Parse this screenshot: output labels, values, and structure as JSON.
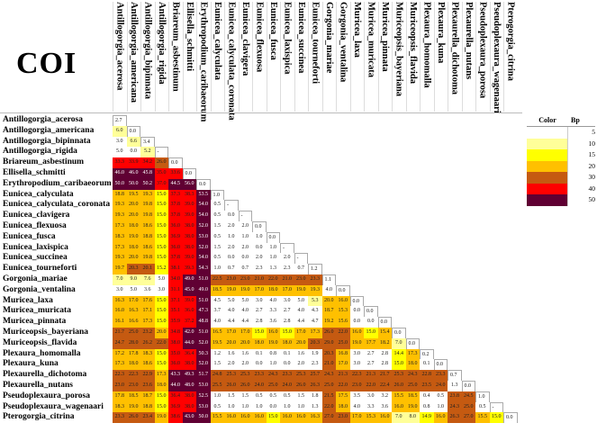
{
  "chart_data": {
    "type": "heatmap",
    "title": "COI",
    "species": [
      "Antillogorgia_acerosa",
      "Antillogorgia_americana",
      "Antillogorgia_bipinnata",
      "Antillogorgia_rigida",
      "Briareum_asbestinum",
      "Ellisella_schmitti",
      "Erythropodium_caribaeorum",
      "Eunicea_calyculata",
      "Eunicea_calyculata_coronata",
      "Eunicea_clavigera",
      "Eunicea_flexuosa",
      "Eunicea_fusca",
      "Eunicea_laxispica",
      "Eunicea_succinea",
      "Eunicea_tourneforti",
      "Gorgonia_mariae",
      "Gorgonia_ventalina",
      "Muricea_laxa",
      "Muricea_muricata",
      "Muricea_pinnata",
      "Muriceopsis_bayeriana",
      "Muriceopsis_flavida",
      "Plexaura_homomalla",
      "Plexaura_kuna",
      "Plexaurella_dichotoma",
      "Plexaurella_nutans",
      "Pseudoplexaura_porosa",
      "Pseudoplexaura_wagenaari",
      "Pterogorgia_citrina"
    ],
    "matrix": [
      [
        "2.7"
      ],
      [
        "6.0",
        "0.0"
      ],
      [
        "3.0",
        "6.6",
        "3.4"
      ],
      [
        "5.0",
        "0.0",
        "5.2",
        "-"
      ],
      [
        "33.3",
        "33.9",
        "34.2",
        "26.0",
        "0.0"
      ],
      [
        "46.0",
        "46.0",
        "45.8",
        "35.0",
        "33.6",
        "0.0"
      ],
      [
        "50.0",
        "50.0",
        "50.2",
        "37.0",
        "44.5",
        "56.0",
        "0.0"
      ],
      [
        "18.8",
        "19.5",
        "19.3",
        "15.0",
        "37.3",
        "38.3",
        "53.5",
        "1.0"
      ],
      [
        "19.3",
        "20.0",
        "19.8",
        "15.0",
        "37.8",
        "39.0",
        "54.0",
        "0.5",
        "-"
      ],
      [
        "19.3",
        "20.0",
        "19.8",
        "15.0",
        "37.8",
        "39.0",
        "54.0",
        "0.5",
        "0.0",
        "-"
      ],
      [
        "17.3",
        "18.0",
        "18.6",
        "15.0",
        "36.0",
        "38.0",
        "52.0",
        "1.5",
        "2.0",
        "2.0",
        "0.0"
      ],
      [
        "18.3",
        "19.0",
        "18.8",
        "15.0",
        "36.9",
        "38.0",
        "53.0",
        "0.5",
        "1.0",
        "1.0",
        "1.0",
        "0.0"
      ],
      [
        "17.3",
        "18.0",
        "18.6",
        "15.0",
        "36.0",
        "38.0",
        "52.0",
        "1.5",
        "2.0",
        "2.0",
        "0.0",
        "1.0",
        "-"
      ],
      [
        "19.3",
        "20.0",
        "19.8",
        "15.0",
        "37.8",
        "39.0",
        "54.0",
        "0.5",
        "0.0",
        "0.0",
        "2.0",
        "1.0",
        "2.0",
        "-"
      ],
      [
        "19.7",
        "20.3",
        "20.1",
        "15.2",
        "38.1",
        "39.3",
        "54.3",
        "1.0",
        "0.7",
        "0.7",
        "2.3",
        "1.3",
        "2.3",
        "0.7",
        "1.2"
      ],
      [
        "7.0",
        "9.0",
        "7.6",
        "5.0",
        "34.0",
        "49.0",
        "51.0",
        "22.5",
        "23.0",
        "23.0",
        "21.0",
        "22.0",
        "21.0",
        "23.0",
        "23.3",
        "1.1"
      ],
      [
        "3.0",
        "5.0",
        "3.6",
        "3.0",
        "31.1",
        "45.0",
        "49.0",
        "18.5",
        "19.0",
        "19.0",
        "17.0",
        "18.0",
        "17.0",
        "19.0",
        "19.3",
        "4.0",
        "0.0"
      ],
      [
        "16.3",
        "17.0",
        "17.6",
        "15.0",
        "37.1",
        "39.0",
        "51.0",
        "4.5",
        "5.0",
        "5.0",
        "3.0",
        "4.0",
        "3.0",
        "5.0",
        "5.3",
        "20.0",
        "16.0",
        "0.0"
      ],
      [
        "16.0",
        "16.3",
        "17.1",
        "15.0",
        "35.1",
        "36.0",
        "47.3",
        "3.7",
        "4.0",
        "4.0",
        "2.7",
        "3.3",
        "2.7",
        "4.0",
        "4.3",
        "18.7",
        "15.3",
        "0.0",
        "0.0"
      ],
      [
        "16.1",
        "16.6",
        "17.3",
        "15.0",
        "35.9",
        "37.2",
        "48.8",
        "4.0",
        "4.4",
        "4.4",
        "2.8",
        "3.6",
        "2.8",
        "4.4",
        "4.7",
        "19.2",
        "15.6",
        "0.0",
        "0.0",
        "0.0"
      ],
      [
        "21.7",
        "25.0",
        "23.2",
        "20.0",
        "34.8",
        "42.0",
        "51.0",
        "16.5",
        "17.0",
        "17.0",
        "15.0",
        "16.0",
        "15.0",
        "17.0",
        "17.3",
        "26.0",
        "22.0",
        "16.0",
        "15.0",
        "15.4",
        "0.0"
      ],
      [
        "24.7",
        "28.0",
        "26.2",
        "22.0",
        "38.0",
        "44.0",
        "52.0",
        "19.5",
        "20.0",
        "20.0",
        "18.0",
        "19.0",
        "18.0",
        "20.0",
        "20.3",
        "29.0",
        "25.0",
        "19.0",
        "17.7",
        "18.2",
        "7.0",
        "0.0"
      ],
      [
        "17.2",
        "17.8",
        "18.3",
        "15.0",
        "35.0",
        "36.4",
        "50.3",
        "1.2",
        "1.6",
        "1.6",
        "0.1",
        "0.8",
        "0.1",
        "1.6",
        "1.9",
        "20.3",
        "16.8",
        "3.0",
        "2.7",
        "2.8",
        "14.4",
        "17.3",
        "0.2"
      ],
      [
        "17.3",
        "18.0",
        "18.6",
        "15.0",
        "36.0",
        "38.0",
        "52.0",
        "1.5",
        "2.0",
        "2.0",
        "0.0",
        "1.0",
        "0.0",
        "2.0",
        "2.3",
        "21.0",
        "17.0",
        "3.0",
        "2.7",
        "2.8",
        "15.0",
        "18.0",
        "0.1",
        "0.0"
      ],
      [
        "22.3",
        "22.3",
        "22.9",
        "17.3",
        "43.3",
        "49.3",
        "51.7",
        "24.8",
        "25.3",
        "25.3",
        "23.3",
        "24.3",
        "23.3",
        "25.3",
        "25.7",
        "24.3",
        "21.3",
        "22.3",
        "21.3",
        "21.7",
        "25.3",
        "24.3",
        "22.8",
        "23.3",
        "0.7"
      ],
      [
        "23.0",
        "23.0",
        "23.6",
        "18.0",
        "44.0",
        "48.0",
        "53.0",
        "25.5",
        "26.0",
        "26.0",
        "24.0",
        "25.0",
        "24.0",
        "26.0",
        "26.3",
        "25.0",
        "22.0",
        "23.0",
        "22.0",
        "22.4",
        "26.0",
        "25.0",
        "23.5",
        "24.0",
        "1.3",
        "0.0"
      ],
      [
        "17.8",
        "18.5",
        "18.7",
        "15.0",
        "36.4",
        "38.0",
        "52.5",
        "1.0",
        "1.5",
        "1.5",
        "0.5",
        "0.5",
        "0.5",
        "1.5",
        "1.8",
        "21.5",
        "17.5",
        "3.5",
        "3.0",
        "3.2",
        "15.5",
        "18.5",
        "0.4",
        "0.5",
        "23.8",
        "24.5",
        "1.0"
      ],
      [
        "18.3",
        "19.0",
        "18.8",
        "15.0",
        "36.9",
        "38.0",
        "53.0",
        "0.5",
        "1.0",
        "1.0",
        "1.0",
        "0.0",
        "1.0",
        "1.0",
        "1.3",
        "22.0",
        "18.0",
        "4.0",
        "3.3",
        "3.6",
        "16.0",
        "19.0",
        "0.8",
        "1.0",
        "24.3",
        "25.0",
        "0.5",
        "-"
      ],
      [
        "23.3",
        "26.0",
        "23.4",
        "19.0",
        "38.6",
        "43.0",
        "50.0",
        "15.5",
        "16.0",
        "16.0",
        "16.0",
        "15.0",
        "16.0",
        "16.0",
        "16.3",
        "27.0",
        "23.0",
        "17.0",
        "15.3",
        "16.0",
        "7.0",
        "8.0",
        "14.9",
        "16.0",
        "26.3",
        "27.0",
        "15.5",
        "15.0",
        "0.0"
      ]
    ],
    "legend": {
      "color_header": "Color",
      "bp_header": "Bp",
      "entries": [
        {
          "bp": "5",
          "color": "#FFFFFF"
        },
        {
          "bp": "10",
          "color": "#FFFF99"
        },
        {
          "bp": "15",
          "color": "#FFFF00"
        },
        {
          "bp": "20",
          "color": "#FFC000"
        },
        {
          "bp": "30",
          "color": "#C55A11"
        },
        {
          "bp": "40",
          "color": "#FF0000"
        },
        {
          "bp": "50",
          "color": "#600033"
        }
      ]
    }
  }
}
